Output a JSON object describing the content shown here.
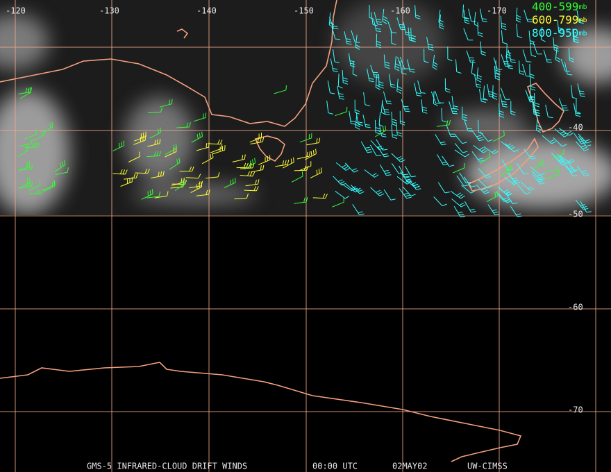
{
  "longitude_labels": [
    "-120",
    "-130",
    "-140",
    "-150",
    "-160",
    "-170"
  ],
  "latitude_labels": [
    "-40",
    "-50",
    "-60",
    "-70"
  ],
  "legend": [
    {
      "label": "400-599",
      "unit": "mb",
      "color": "#33ff33"
    },
    {
      "label": "600-799",
      "unit": "mb",
      "color": "#ffff33"
    },
    {
      "label": "800-950",
      "unit": "mb",
      "color": "#33ffff"
    }
  ],
  "footer": {
    "title": "GMS-5 INFRARED-CLOUD DRIFT WINDS",
    "time": "00:00 UTC",
    "date": "02MAY02",
    "source": "UW-CIMSS"
  }
}
